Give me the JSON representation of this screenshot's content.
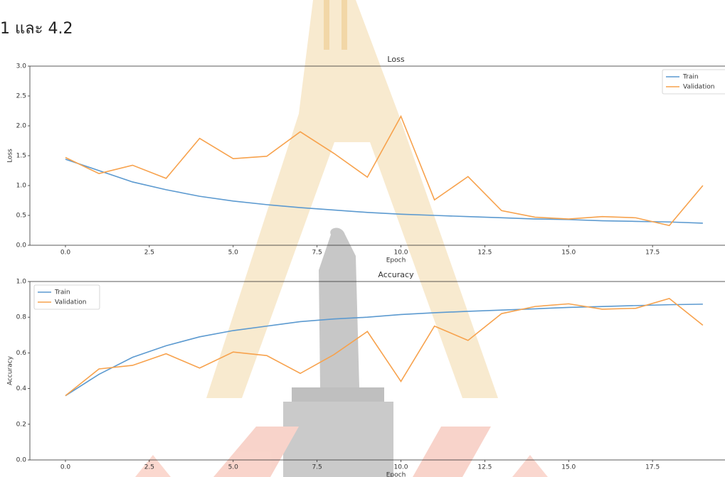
{
  "header_text": "1 และ 4.2",
  "chart_data": [
    {
      "type": "line",
      "title": "Loss",
      "xlabel": "Epoch",
      "ylabel": "Loss",
      "x": [
        0,
        1,
        2,
        3,
        4,
        5,
        6,
        7,
        8,
        9,
        10,
        11,
        12,
        13,
        14,
        15,
        16,
        17,
        18,
        19
      ],
      "series": [
        {
          "name": "Train",
          "color": "#5c9ad0",
          "values": [
            1.44,
            1.25,
            1.06,
            0.93,
            0.82,
            0.74,
            0.68,
            0.63,
            0.59,
            0.55,
            0.52,
            0.5,
            0.48,
            0.46,
            0.44,
            0.43,
            0.41,
            0.4,
            0.39,
            0.37
          ]
        },
        {
          "name": "Validation",
          "color": "#f7a24d",
          "values": [
            1.47,
            1.2,
            1.34,
            1.12,
            1.79,
            1.45,
            1.49,
            1.9,
            1.54,
            1.14,
            2.16,
            0.76,
            1.15,
            0.58,
            0.47,
            0.44,
            0.48,
            0.46,
            0.33,
            1.0
          ]
        }
      ],
      "xlim": [
        -1.06,
        19.66
      ],
      "ylim": [
        0,
        3
      ],
      "xticks": [
        {
          "value": 0,
          "label": "0.0"
        },
        {
          "value": 2.5,
          "label": "2.5"
        },
        {
          "value": 5,
          "label": "5.0"
        },
        {
          "value": 7.5,
          "label": "7.5"
        },
        {
          "value": 10,
          "label": "10.0"
        },
        {
          "value": 12.5,
          "label": "12.5"
        },
        {
          "value": 15,
          "label": "15.0"
        },
        {
          "value": 17.5,
          "label": "17.5"
        }
      ],
      "yticks": [
        {
          "value": 0,
          "label": "0.0"
        },
        {
          "value": 0.5,
          "label": "0.5"
        },
        {
          "value": 1,
          "label": "1.0"
        },
        {
          "value": 1.5,
          "label": "1.5"
        },
        {
          "value": 2,
          "label": "2.0"
        },
        {
          "value": 2.5,
          "label": "2.5"
        },
        {
          "value": 3,
          "label": "3.0"
        }
      ],
      "legend": "upper right"
    },
    {
      "type": "line",
      "title": "Accuracy",
      "xlabel": "Epoch",
      "ylabel": "Accuracy",
      "x": [
        0,
        1,
        2,
        3,
        4,
        5,
        6,
        7,
        8,
        9,
        10,
        11,
        12,
        13,
        14,
        15,
        16,
        17,
        18,
        19
      ],
      "series": [
        {
          "name": "Train",
          "color": "#5c9ad0",
          "values": [
            0.36,
            0.48,
            0.575,
            0.64,
            0.69,
            0.725,
            0.75,
            0.775,
            0.79,
            0.8,
            0.815,
            0.825,
            0.833,
            0.84,
            0.847,
            0.855,
            0.86,
            0.865,
            0.87,
            0.873
          ]
        },
        {
          "name": "Validation",
          "color": "#f7a24d",
          "values": [
            0.36,
            0.51,
            0.53,
            0.595,
            0.515,
            0.605,
            0.585,
            0.485,
            0.59,
            0.72,
            0.44,
            0.75,
            0.67,
            0.82,
            0.86,
            0.875,
            0.845,
            0.85,
            0.905,
            0.755
          ]
        }
      ],
      "xlim": [
        -1.06,
        19.66
      ],
      "ylim": [
        0,
        1
      ],
      "xticks": [
        {
          "value": 0,
          "label": "0.0"
        },
        {
          "value": 2.5,
          "label": "2.5"
        },
        {
          "value": 5,
          "label": "5.0"
        },
        {
          "value": 7.5,
          "label": "7.5"
        },
        {
          "value": 10,
          "label": "10.0"
        },
        {
          "value": 12.5,
          "label": "12.5"
        },
        {
          "value": 15,
          "label": "15.0"
        },
        {
          "value": 17.5,
          "label": "17.5"
        }
      ],
      "yticks": [
        {
          "value": 0,
          "label": "0.0"
        },
        {
          "value": 0.2,
          "label": "0.2"
        },
        {
          "value": 0.4,
          "label": "0.4"
        },
        {
          "value": 0.6,
          "label": "0.6"
        },
        {
          "value": 0.8,
          "label": "0.8"
        },
        {
          "value": 1,
          "label": "1.0"
        }
      ],
      "legend": "upper left"
    }
  ]
}
